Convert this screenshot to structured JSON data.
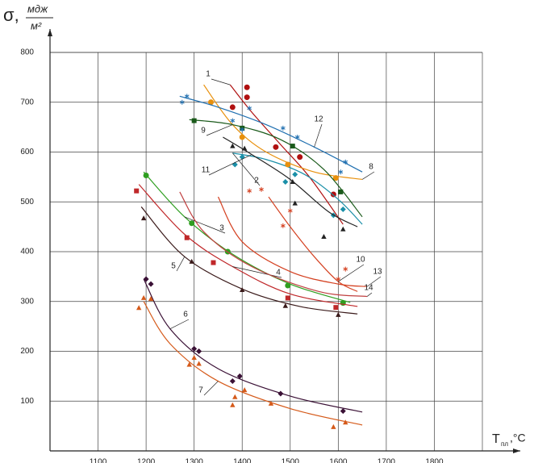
{
  "chart_data": {
    "type": "line",
    "y_label": {
      "symbol": "σ,",
      "numerator": "мдж",
      "denominator": "м²"
    },
    "x_label": {
      "symbol": "T",
      "subscript": "пл",
      "unit": ",°C"
    },
    "xlim": [
      1000,
      1900
    ],
    "ylim": [
      0,
      800
    ],
    "xticks": [
      1100,
      1200,
      1300,
      1400,
      1500,
      1600,
      1700,
      1800
    ],
    "yticks": [
      100,
      200,
      300,
      400,
      500,
      600,
      700,
      800
    ],
    "grid": true,
    "series": [
      {
        "name": "1",
        "color": "#b01010",
        "marker": "circle",
        "x": [
          1375,
          1420,
          1480,
          1540,
          1610
        ],
        "values": [
          735,
          680,
          615,
          550,
          455
        ],
        "marker_x": [
          1410,
          1410,
          1380,
          1470,
          1520,
          1590
        ],
        "marker_y": [
          730,
          710,
          690,
          610,
          590,
          515
        ]
      },
      {
        "name": "2",
        "color": "#1a8fa8",
        "marker": "diamond",
        "x": [
          1380,
          1450,
          1530,
          1600,
          1650
        ],
        "values": [
          598,
          585,
          555,
          505,
          455
        ],
        "marker_x": [
          1400,
          1385,
          1510,
          1490,
          1590,
          1610
        ],
        "marker_y": [
          590,
          575,
          555,
          540,
          473,
          485
        ]
      },
      {
        "name": "3",
        "color": "#2e9e1f",
        "marker": "circle",
        "x": [
          1195,
          1280,
          1380,
          1500,
          1625
        ],
        "values": [
          560,
          470,
          395,
          335,
          298
        ],
        "marker_x": [
          1200,
          1295,
          1370,
          1495,
          1610
        ],
        "marker_y": [
          553,
          457,
          400,
          332,
          297
        ]
      },
      {
        "name": "4",
        "color": "#c0282a",
        "marker": "square",
        "x": [
          1185,
          1280,
          1380,
          1500,
          1640
        ],
        "values": [
          535,
          435,
          370,
          315,
          290
        ],
        "marker_x": [
          1180,
          1285,
          1340,
          1495,
          1595
        ],
        "marker_y": [
          522,
          428,
          378,
          307,
          288
        ]
      },
      {
        "name": "5",
        "color": "#3a1a1a",
        "marker": "triangle",
        "x": [
          1190,
          1280,
          1400,
          1520,
          1640
        ],
        "values": [
          490,
          390,
          325,
          290,
          275
        ],
        "marker_x": [
          1195,
          1295,
          1400,
          1490,
          1600
        ],
        "marker_y": [
          467,
          380,
          323,
          291,
          273
        ]
      },
      {
        "name": "6",
        "color": "#3a1035",
        "marker": "diamond",
        "x": [
          1195,
          1250,
          1350,
          1500,
          1650
        ],
        "values": [
          345,
          245,
          165,
          110,
          78
        ],
        "marker_x": [
          1200,
          1210,
          1300,
          1310,
          1380,
          1395,
          1480,
          1610
        ],
        "marker_y": [
          345,
          335,
          205,
          200,
          140,
          150,
          115,
          80
        ]
      },
      {
        "name": "7",
        "color": "#d55a1a",
        "marker": "triangle",
        "x": [
          1195,
          1250,
          1350,
          1500,
          1650
        ],
        "values": [
          300,
          215,
          140,
          85,
          52
        ],
        "marker_x": [
          1185,
          1195,
          1210,
          1290,
          1300,
          1310,
          1380,
          1385,
          1405,
          1460,
          1590,
          1615
        ],
        "marker_y": [
          287,
          307,
          305,
          173,
          187,
          175,
          92,
          108,
          122,
          95,
          48,
          57
        ]
      },
      {
        "name": "8",
        "color": "#e8900c",
        "marker": "circle",
        "x": [
          1320,
          1380,
          1450,
          1550,
          1650
        ],
        "values": [
          735,
          655,
          600,
          560,
          545
        ],
        "marker_x": [
          1335,
          1400,
          1495,
          1595
        ],
        "marker_y": [
          700,
          630,
          575,
          548
        ]
      },
      {
        "name": "9",
        "color": "#1a5a1a",
        "marker": "square",
        "x": [
          1290,
          1380,
          1480,
          1570,
          1650
        ],
        "values": [
          665,
          655,
          625,
          565,
          470
        ],
        "marker_x": [
          1300,
          1400,
          1505,
          1605
        ],
        "marker_y": [
          663,
          648,
          612,
          520
        ]
      },
      {
        "name": "10",
        "color": "#d44020",
        "marker": "asterisk",
        "x": [
          1455,
          1500,
          1550,
          1600,
          1640
        ],
        "values": [
          510,
          450,
          390,
          340,
          320
        ],
        "marker_x": [
          1415,
          1440,
          1500,
          1485,
          1600,
          1615
        ],
        "marker_y": [
          522,
          525,
          482,
          452,
          345,
          365
        ]
      },
      {
        "name": "11",
        "color": "#222222",
        "marker": "triangle",
        "x": [
          1360,
          1420,
          1500,
          1580,
          1640
        ],
        "values": [
          630,
          595,
          545,
          480,
          450
        ],
        "marker_x": [
          1380,
          1405,
          1505,
          1510,
          1570,
          1610
        ],
        "marker_y": [
          612,
          607,
          540,
          497,
          430,
          445
        ]
      },
      {
        "name": "12",
        "color": "#1f6fb0",
        "marker": "asterisk",
        "x": [
          1270,
          1350,
          1450,
          1550,
          1650
        ],
        "values": [
          712,
          690,
          655,
          610,
          560
        ],
        "marker_x": [
          1275,
          1285,
          1380,
          1400,
          1415,
          1485,
          1515,
          1605,
          1615
        ],
        "marker_y": [
          700,
          712,
          663,
          645,
          688,
          648,
          630,
          560,
          580
        ]
      },
      {
        "name": "13",
        "color": "#d44020",
        "marker": "none",
        "x": [
          1350,
          1400,
          1500,
          1600,
          1660
        ],
        "values": [
          510,
          420,
          360,
          335,
          330
        ],
        "marker_x": [],
        "marker_y": []
      },
      {
        "name": "14",
        "color": "#c04040",
        "marker": "none",
        "x": [
          1270,
          1320,
          1420,
          1560,
          1660
        ],
        "values": [
          520,
          440,
          370,
          320,
          310
        ],
        "marker_x": [],
        "marker_y": []
      }
    ]
  }
}
